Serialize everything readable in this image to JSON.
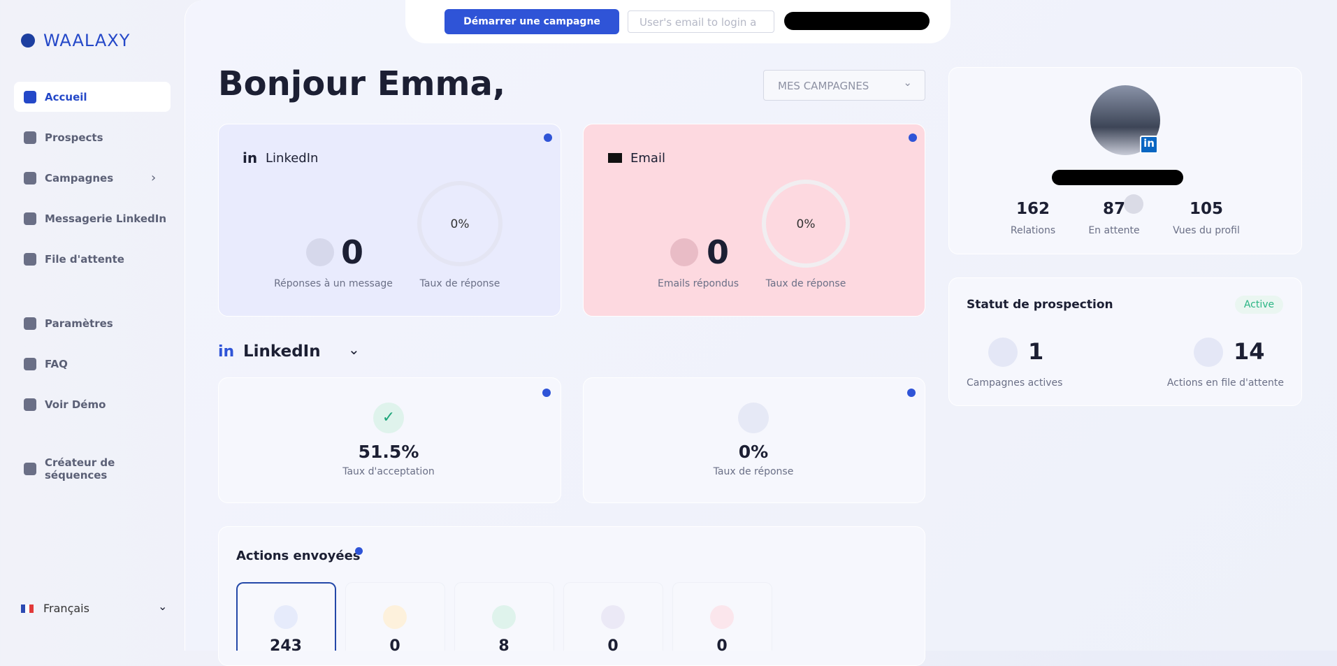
{
  "sidebar": {
    "logo": "WAALAXY",
    "nav": [
      "Accueil",
      "Prospects",
      "Campagnes",
      "Messagerie LinkedIn",
      "File d'attente",
      "Paramètres",
      "FAQ",
      "Voir Démo",
      "Créateur de séquences"
    ],
    "language": "Français"
  },
  "topbar": {
    "button": "Démarrer une campagne",
    "email_placeholder": "User's email to login a"
  },
  "greeting": "Bonjour Emma,",
  "campaign_select": "MES CAMPAGNES",
  "linkedin_card": {
    "title": "LinkedIn",
    "count": 0,
    "count_label": "Réponses à un message",
    "rate": "0%",
    "rate_label": "Taux de réponse"
  },
  "email_card": {
    "title": "Email",
    "count": 0,
    "count_label": "Emails répondus",
    "rate": "0%",
    "rate_label": "Taux de réponse"
  },
  "section": "LinkedIn",
  "stats": [
    {
      "value": "51.5%",
      "label": "Taux d'acceptation"
    },
    {
      "value": "0%",
      "label": "Taux de réponse"
    }
  ],
  "actions": {
    "title": "Actions envoyées",
    "values": [
      243,
      0,
      8,
      0,
      0
    ]
  },
  "profile": {
    "stats": [
      {
        "value": 162,
        "label": "Relations"
      },
      {
        "value": 87,
        "label": "En attente"
      },
      {
        "value": 105,
        "label": "Vues du profil"
      }
    ]
  },
  "prospection": {
    "title": "Statut de prospection",
    "status": "Active",
    "stats": [
      {
        "value": 1,
        "label": "Campagnes actives"
      },
      {
        "value": 14,
        "label": "Actions en file d'attente"
      }
    ]
  }
}
